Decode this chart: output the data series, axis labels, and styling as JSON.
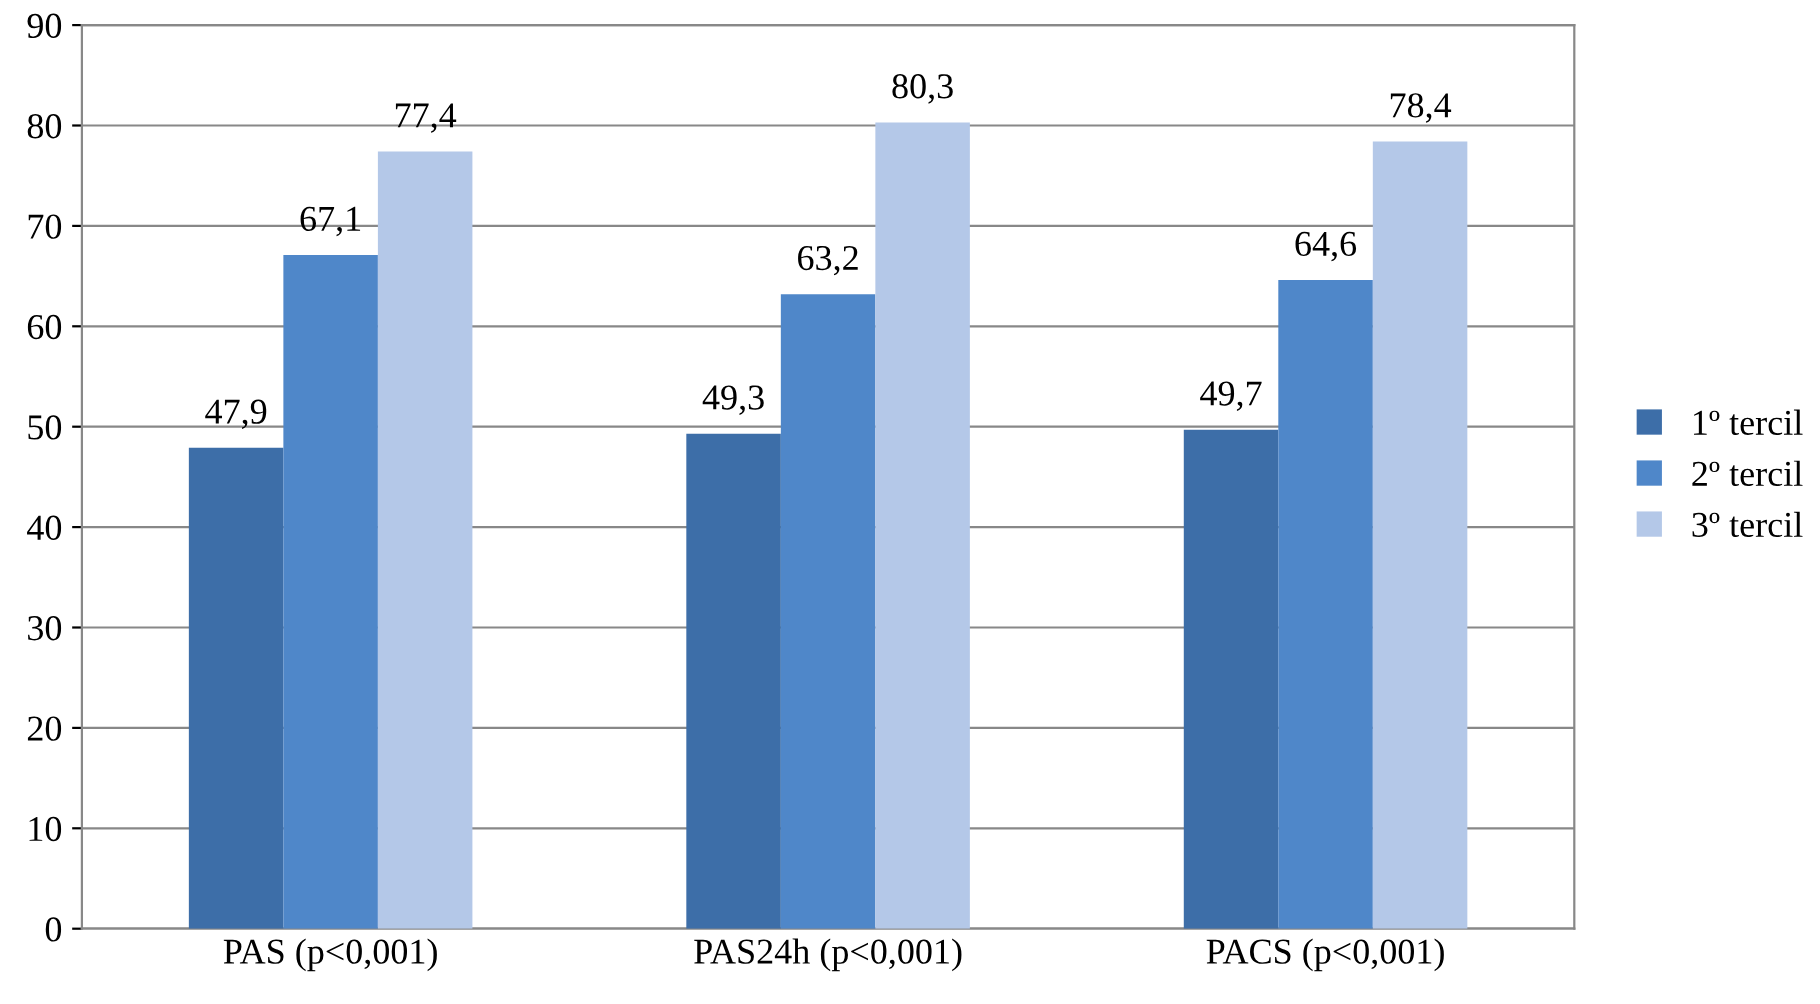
{
  "chart_data": {
    "type": "bar",
    "categories": [
      "PAS (p<0,001)",
      "PAS24h (p<0,001)",
      "PACS (p<0,001)"
    ],
    "series": [
      {
        "name": "1º tercil",
        "color": "#3d6ea8",
        "values": [
          47.9,
          49.3,
          49.7
        ],
        "value_labels": [
          "47,9",
          "49,3",
          "49,7"
        ]
      },
      {
        "name": "2º tercil",
        "color": "#4f87c9",
        "values": [
          67.1,
          63.2,
          64.6
        ],
        "value_labels": [
          "67,1",
          "63,2",
          "64,6"
        ]
      },
      {
        "name": "3º tercil",
        "color": "#b4c8e8",
        "values": [
          77.4,
          80.3,
          78.4
        ],
        "value_labels": [
          "77,4",
          "80,3",
          "78,4"
        ]
      }
    ],
    "ylim": [
      0,
      90
    ],
    "yticks": [
      0,
      10,
      20,
      30,
      40,
      50,
      60,
      70,
      80,
      90
    ],
    "grid": "y",
    "legend": "right"
  }
}
